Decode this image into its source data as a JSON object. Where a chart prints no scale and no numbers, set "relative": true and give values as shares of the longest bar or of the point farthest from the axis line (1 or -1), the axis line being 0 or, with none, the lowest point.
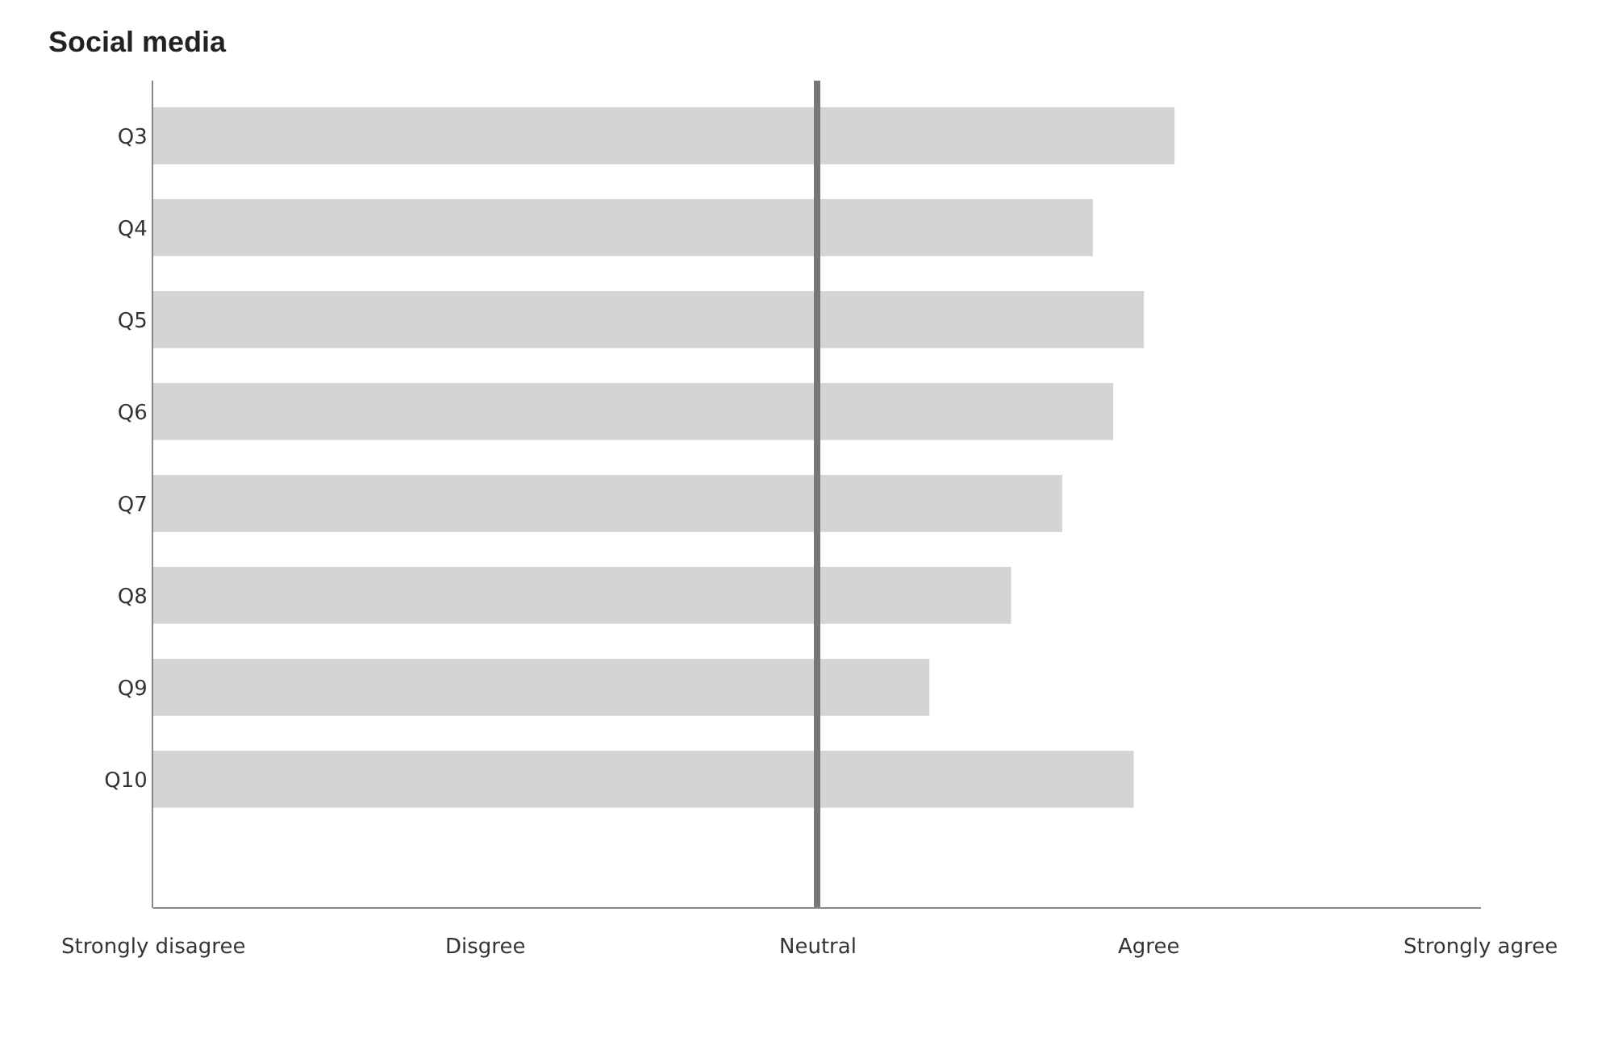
{
  "chart_data": {
    "type": "bar",
    "orientation": "horizontal",
    "title": "Social media",
    "relative": true,
    "categories": [
      "Q3",
      "Q4",
      "Q5",
      "Q6",
      "Q7",
      "Q8",
      "Q9",
      "Q10"
    ],
    "values": [
      1,
      0.92,
      0.97,
      0.94,
      0.89,
      0.84,
      0.76,
      0.96
    ],
    "color": "#d4d4d4",
    "annotations": [
      "Strongly disagree",
      "Disgree",
      "Neutral",
      "Agree",
      "Strongly agree"
    ],
    "ref_lines": [
      {
        "axis": "x",
        "value": 0.65,
        "color": "#777777"
      }
    ]
  }
}
